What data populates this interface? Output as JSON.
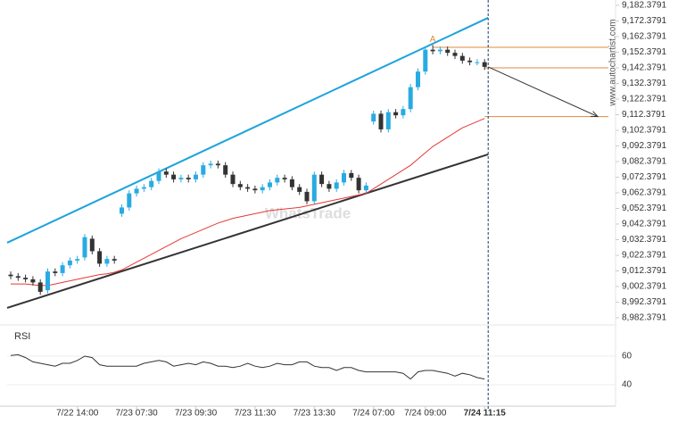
{
  "chart_data": [
    {
      "type": "candlestick",
      "watermark": "WhatsTrade",
      "side_text": "www.autochartist.com",
      "annotation": "A",
      "categories": [
        null,
        null,
        null,
        null,
        null,
        null,
        null,
        null,
        null,
        "7/22 14:00",
        null,
        null,
        null,
        null,
        null,
        null,
        null,
        "7/23 07:30",
        null,
        null,
        null,
        null,
        null,
        null,
        null,
        "7/23 09:30",
        null,
        null,
        null,
        null,
        null,
        null,
        null,
        "7/23 11:30",
        null,
        null,
        null,
        null,
        null,
        null,
        null,
        "7/23 13:30",
        null,
        null,
        null,
        null,
        null,
        null,
        null,
        "7/24 07:00",
        null,
        null,
        null,
        null,
        null,
        null,
        "7/24 09:00",
        null,
        null,
        null,
        null,
        null,
        null,
        null,
        "7/24 11:15"
      ],
      "open": [
        9010,
        9009,
        9008,
        9007,
        9005,
        9000,
        9012,
        9011,
        9016,
        9019,
        9021,
        9033,
        9025,
        9017,
        9020,
        9049,
        9053,
        9062,
        9065,
        9066,
        9070,
        9076,
        9074,
        9071,
        9072,
        9071,
        9074,
        9080,
        9081,
        9080,
        9074,
        9068,
        9066,
        9065,
        9064,
        9066,
        9069,
        9072,
        9071,
        9066,
        9063,
        9057,
        9074,
        9068,
        9065,
        9069,
        9075,
        9072,
        9064,
        9108,
        9113,
        9103,
        9114,
        9112,
        9116,
        9130,
        9140,
        9154,
        9153,
        9154,
        9152,
        9150,
        9147,
        9146,
        9146
      ],
      "high": [
        9012,
        9011,
        9010,
        9009,
        9007,
        9014,
        9014,
        9018,
        9021,
        9022,
        9036,
        9035,
        9027,
        9022,
        9022,
        9055,
        9064,
        9067,
        9068,
        9072,
        9078,
        9078,
        9076,
        9074,
        9074,
        9076,
        9082,
        9083,
        9083,
        9082,
        9076,
        9070,
        9068,
        9067,
        9068,
        9071,
        9074,
        9074,
        9073,
        9068,
        9065,
        9076,
        9076,
        9070,
        9071,
        9077,
        9077,
        9074,
        9069,
        9115,
        9115,
        9116,
        9116,
        9118,
        9132,
        9142,
        9156,
        9157,
        9156,
        9156,
        9154,
        9152,
        9149,
        9148,
        9148
      ],
      "low": [
        9007,
        9006,
        9005,
        9003,
        8997,
        8998,
        9009,
        9009,
        9014,
        9017,
        9019,
        9023,
        9015,
        9015,
        9017,
        9047,
        9051,
        9060,
        9063,
        9064,
        9068,
        9072,
        9069,
        9069,
        9069,
        9069,
        9072,
        9078,
        9078,
        9072,
        9066,
        9064,
        9063,
        9062,
        9062,
        9064,
        9067,
        9069,
        9064,
        9061,
        9055,
        9055,
        9066,
        9063,
        9063,
        9067,
        9070,
        9062,
        9062,
        9106,
        9101,
        9101,
        9110,
        9110,
        9114,
        9128,
        9138,
        9151,
        9151,
        9150,
        9148,
        9145,
        9144,
        9144,
        9141
      ],
      "close": [
        9009,
        9008,
        9007,
        9005,
        8999,
        9012,
        9011,
        9016,
        9019,
        9020,
        9034,
        9025,
        9017,
        9020,
        9019,
        9053,
        9062,
        9065,
        9066,
        9070,
        9076,
        9074,
        9071,
        9072,
        9071,
        9074,
        9080,
        9081,
        9080,
        9074,
        9068,
        9066,
        9065,
        9064,
        9066,
        9069,
        9072,
        9071,
        9066,
        9063,
        9057,
        9074,
        9068,
        9065,
        9069,
        9075,
        9072,
        9064,
        9067,
        9113,
        9103,
        9114,
        9112,
        9116,
        9130,
        9140,
        9154,
        9153,
        9154,
        9152,
        9150,
        9147,
        9146,
        9146,
        9143
      ],
      "up_color": "#29abe2",
      "down_color": "#333333",
      "series": [
        {
          "color": "#e53935",
          "values": [
            9004,
            9004,
            9004,
            9003.5,
            9003,
            9003,
            9004,
            9005,
            9006,
            9007,
            9008,
            9009,
            9010,
            9010.5,
            9011.5,
            9013,
            9015.5,
            9018,
            9020.5,
            9023,
            9025.5,
            9028,
            9030.5,
            9033,
            9035,
            9037,
            9039,
            9041,
            9043,
            9044.5,
            9046,
            9047,
            9048,
            9049,
            9050,
            9051,
            9051.5,
            9052,
            9052.5,
            9053,
            9054,
            9055,
            9056,
            9057,
            9058,
            9059,
            9060,
            9061,
            9062,
            9065,
            9068,
            9071,
            9074,
            9077,
            9080,
            9084,
            9088,
            9092,
            9095,
            9098,
            9101,
            9104,
            9106,
            9108,
            9110
          ]
        }
      ],
      "trendlines": [
        {
          "color": "#1ca3db",
          "values": [
            9030.4,
            9174.4
          ]
        },
        {
          "color": "#333333",
          "values": [
            8988.7,
            9087
          ]
        }
      ],
      "levels": [
        9155.5,
        9142.3791,
        9111.2
      ],
      "level_color": "#e08a3c",
      "ylim": [
        8982.3791,
        9182.3791
      ],
      "yticks": [
        {
          "value": 8982.3791,
          "label": "8,982.3791"
        },
        {
          "value": 8992.3791,
          "label": "8,992.3791"
        },
        {
          "value": 9002.3791,
          "label": "9,002.3791"
        },
        {
          "value": 9012.3791,
          "label": "9,012.3791"
        },
        {
          "value": 9022.3791,
          "label": "9,022.3791"
        },
        {
          "value": 9032.3791,
          "label": "9,032.3791"
        },
        {
          "value": 9042.3791,
          "label": "9,042.3791"
        },
        {
          "value": 9052.3791,
          "label": "9,052.3791"
        },
        {
          "value": 9062.3791,
          "label": "9,062.3791"
        },
        {
          "value": 9072.3791,
          "label": "9,072.3791"
        },
        {
          "value": 9082.3791,
          "label": "9,082.3791"
        },
        {
          "value": 9092.3791,
          "label": "9,092.3791"
        },
        {
          "value": 9102.3791,
          "label": "9,102.3791"
        },
        {
          "value": 9112.3791,
          "label": "9,112.3791"
        },
        {
          "value": 9122.3791,
          "label": "9,122.3791"
        },
        {
          "value": 9132.3791,
          "label": "9,132.3791"
        },
        {
          "value": 9142.3791,
          "label": "9,142.3791"
        },
        {
          "value": 9152.3791,
          "label": "9,152.3791"
        },
        {
          "value": 9162.3791,
          "label": "9,162.3791"
        },
        {
          "value": 9172.3791,
          "label": "9,172.3791"
        },
        {
          "value": 9182.3791,
          "label": "9,182.3791"
        }
      ]
    },
    {
      "type": "line",
      "title": "RSI",
      "series": [
        {
          "color": "#333333",
          "values": [
            60.5,
            61,
            59,
            56,
            55,
            54,
            53,
            55,
            55,
            57,
            60,
            59,
            54,
            53,
            53,
            53,
            53,
            53,
            55,
            56,
            57,
            56,
            53,
            54,
            55,
            54,
            56,
            55,
            53,
            53,
            52,
            53,
            55,
            53,
            52,
            53,
            55,
            54,
            54,
            56,
            56,
            53,
            52,
            52,
            50,
            52,
            52,
            50,
            49,
            49,
            49,
            49,
            49,
            48,
            44,
            49,
            50,
            50,
            49,
            48,
            46,
            48,
            47,
            45,
            44
          ]
        }
      ],
      "ylim": [
        25,
        75
      ],
      "yticks": [
        40,
        60
      ]
    }
  ]
}
